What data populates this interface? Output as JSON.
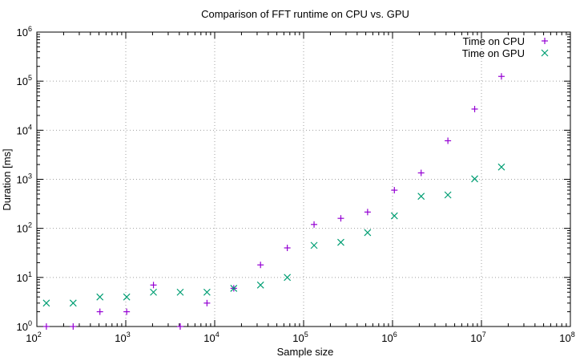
{
  "chart_data": {
    "type": "scatter",
    "title": "Comparison of FFT runtime on CPU vs. GPU",
    "xlabel": "Sample size",
    "ylabel": "Duration [ms]",
    "xscale": "log",
    "yscale": "log",
    "xlim": [
      100,
      100000000
    ],
    "ylim": [
      1,
      1000000
    ],
    "grid": true,
    "legend_position": "top-right",
    "x_ticks": [
      {
        "base": "10",
        "exp": "2",
        "value": 100
      },
      {
        "base": "10",
        "exp": "3",
        "value": 1000
      },
      {
        "base": "10",
        "exp": "4",
        "value": 10000
      },
      {
        "base": "10",
        "exp": "5",
        "value": 100000
      },
      {
        "base": "10",
        "exp": "6",
        "value": 1000000
      },
      {
        "base": "10",
        "exp": "7",
        "value": 10000000
      },
      {
        "base": "10",
        "exp": "8",
        "value": 100000000
      }
    ],
    "y_ticks": [
      {
        "base": "10",
        "exp": "0",
        "value": 1
      },
      {
        "base": "10",
        "exp": "1",
        "value": 10
      },
      {
        "base": "10",
        "exp": "2",
        "value": 100
      },
      {
        "base": "10",
        "exp": "3",
        "value": 1000
      },
      {
        "base": "10",
        "exp": "4",
        "value": 10000
      },
      {
        "base": "10",
        "exp": "5",
        "value": 100000
      },
      {
        "base": "10",
        "exp": "6",
        "value": 1000000
      }
    ],
    "series": [
      {
        "name": "Time on CPU",
        "marker": "plus",
        "color": "#9400d3",
        "points": [
          [
            128,
            1
          ],
          [
            256,
            1
          ],
          [
            512,
            2
          ],
          [
            1024,
            2
          ],
          [
            2048,
            7
          ],
          [
            4096,
            1
          ],
          [
            8192,
            3
          ],
          [
            16384,
            6
          ],
          [
            32768,
            18
          ],
          [
            65536,
            40
          ],
          [
            131072,
            120
          ],
          [
            262144,
            160
          ],
          [
            524288,
            215
          ],
          [
            1048576,
            600
          ],
          [
            2097152,
            1350
          ],
          [
            4194304,
            6100
          ],
          [
            8388608,
            27000
          ],
          [
            16777216,
            125000
          ]
        ]
      },
      {
        "name": "Time on GPU",
        "marker": "cross",
        "color": "#009e73",
        "points": [
          [
            128,
            3
          ],
          [
            256,
            3
          ],
          [
            512,
            4
          ],
          [
            1024,
            4
          ],
          [
            2048,
            5
          ],
          [
            4096,
            5
          ],
          [
            8192,
            5
          ],
          [
            16384,
            6
          ],
          [
            32768,
            7
          ],
          [
            65536,
            10
          ],
          [
            131072,
            45
          ],
          [
            262144,
            52
          ],
          [
            524288,
            82
          ],
          [
            1048576,
            180
          ],
          [
            2097152,
            450
          ],
          [
            4194304,
            480
          ],
          [
            8388608,
            1020
          ],
          [
            16777216,
            1780
          ]
        ]
      }
    ]
  }
}
